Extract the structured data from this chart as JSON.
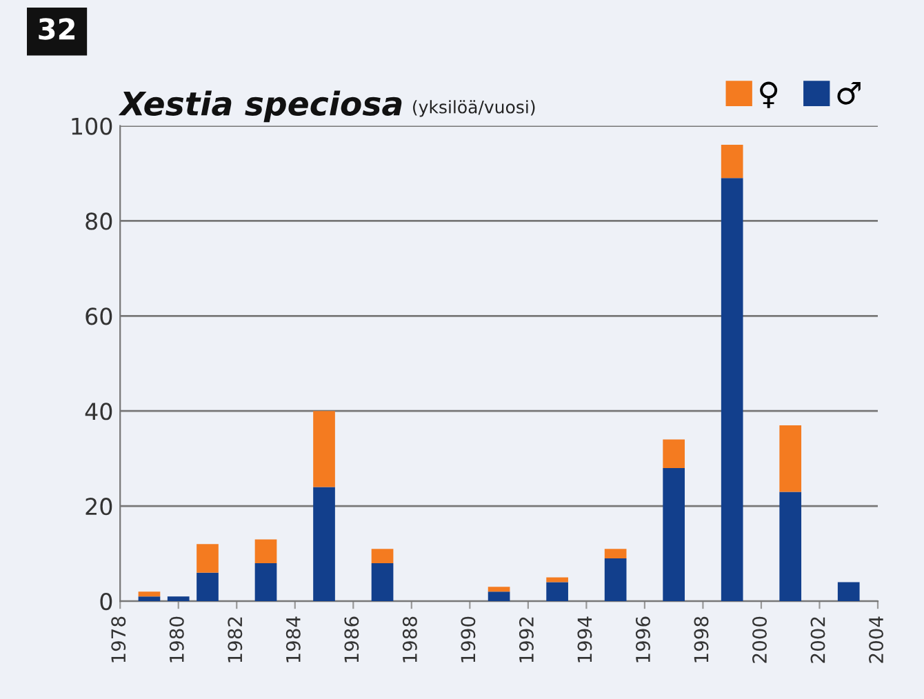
{
  "chart_data": {
    "type": "bar",
    "title": "Xestia speciosa",
    "subtitle": "(yksilöä/vuosi)",
    "annotations": [
      "32"
    ],
    "x": [
      1979,
      1980,
      1981,
      1983,
      1985,
      1987,
      1991,
      1993,
      1995,
      1997,
      1999,
      2001,
      2003
    ],
    "series": [
      {
        "name": "♂",
        "color": "#123f8c",
        "values": [
          1,
          1,
          6,
          8,
          24,
          8,
          2,
          4,
          9,
          28,
          89,
          23,
          4
        ]
      },
      {
        "name": "♀",
        "color": "#f47b20",
        "values": [
          1,
          0,
          6,
          5,
          16,
          3,
          1,
          1,
          2,
          6,
          7,
          14,
          0
        ]
      }
    ],
    "stacked": true,
    "xlim": [
      1978,
      2004
    ],
    "xticks": [
      1978,
      1980,
      1982,
      1984,
      1986,
      1988,
      1990,
      1992,
      1994,
      1996,
      1998,
      2000,
      2002,
      2004
    ],
    "ylim": [
      0,
      100
    ],
    "yticks": [
      0,
      20,
      40,
      60,
      80,
      100
    ],
    "grid": "y",
    "legend": "top right"
  }
}
